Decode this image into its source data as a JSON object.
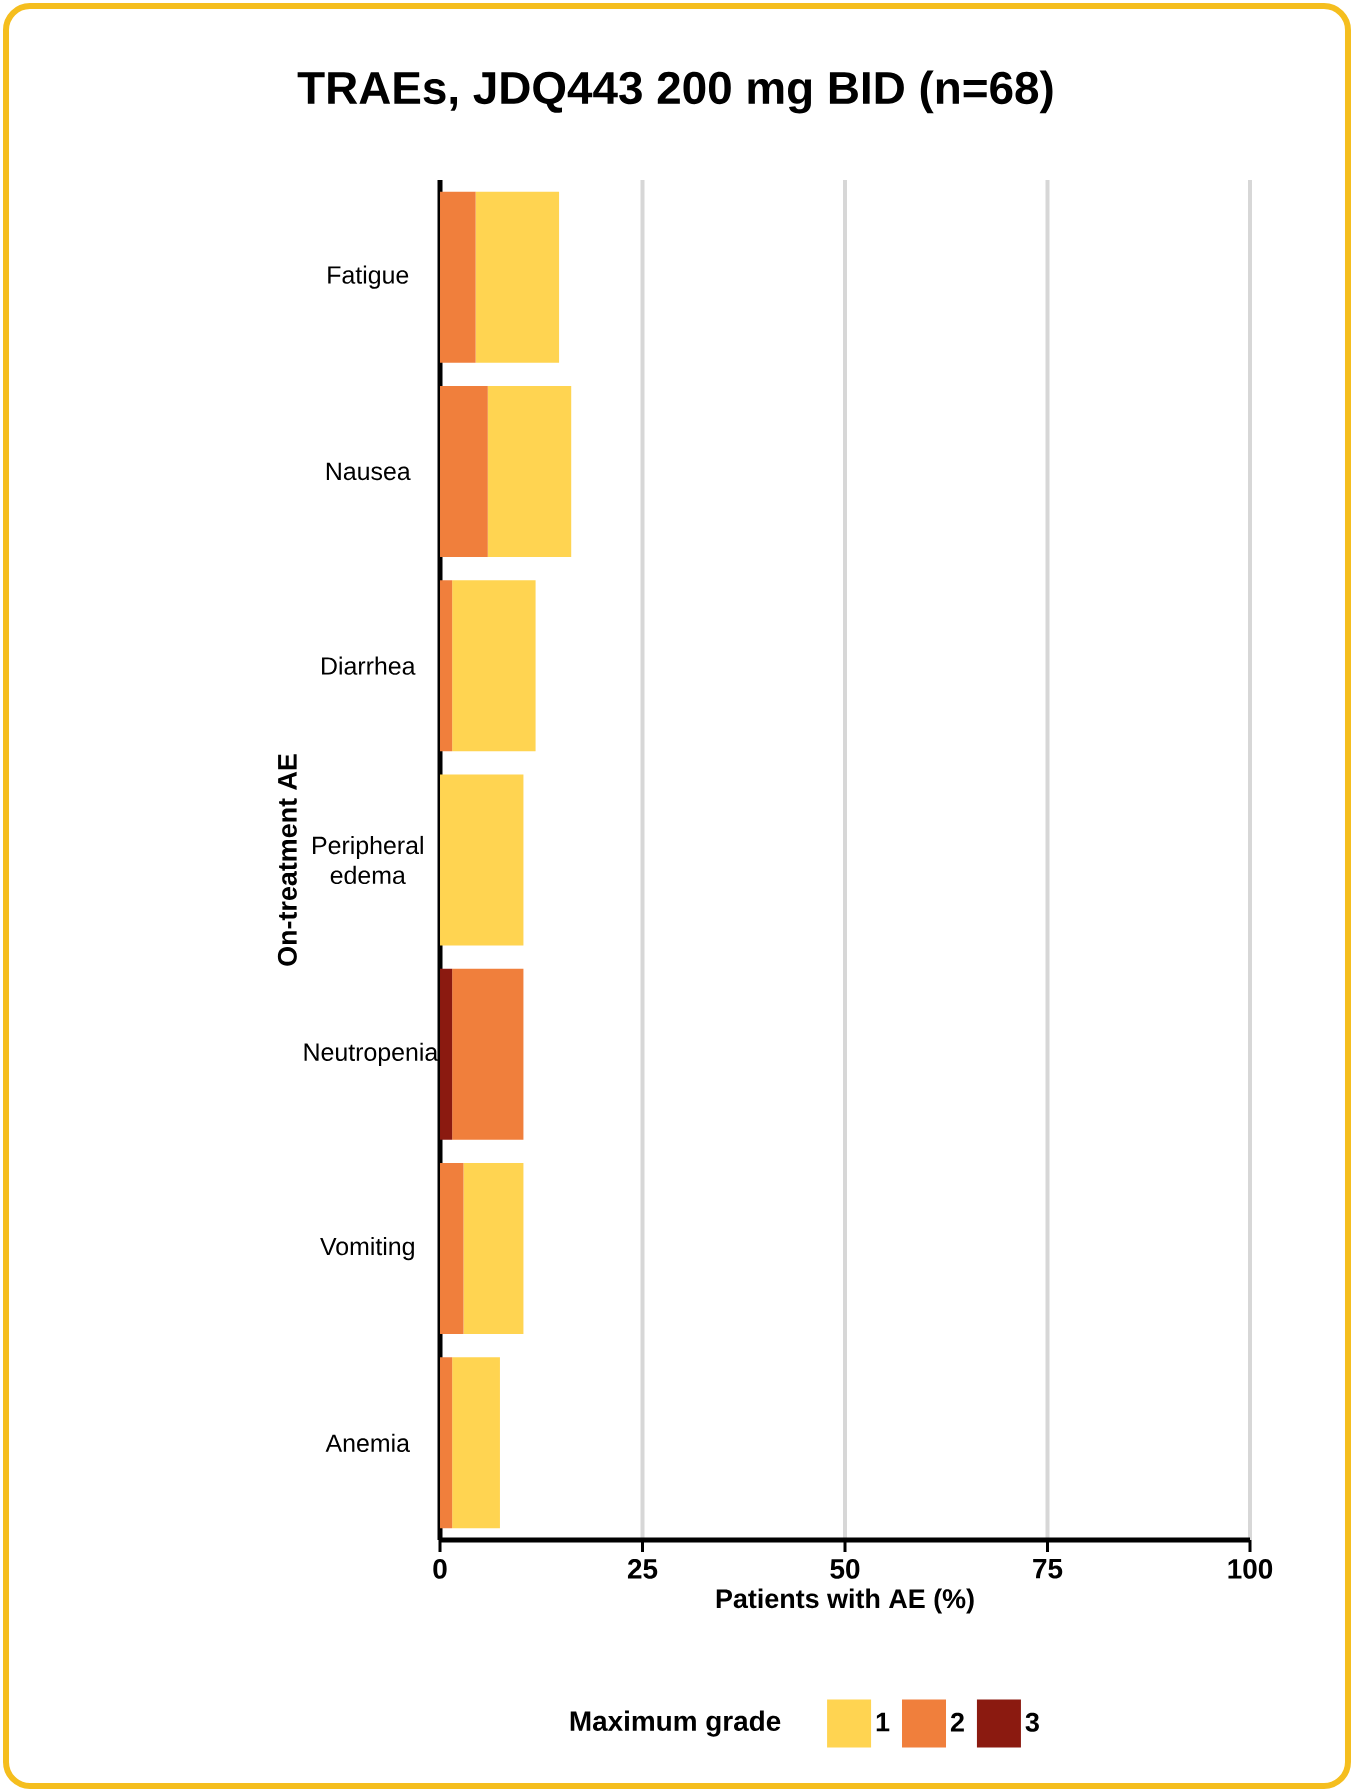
{
  "chart_data": {
    "type": "bar",
    "orientation": "horizontal",
    "stacked": true,
    "title": "TRAEs, JDQ443 200 mg BID (n=68)",
    "xlabel": "Patients with AE (%)",
    "ylabel": "On-treatment AE",
    "legend_title": "Maximum grade",
    "legend": "bottom",
    "grid": "x",
    "categories": [
      "Fatigue",
      "Nausea",
      "Diarrhea",
      "Peripheral edema",
      "Neutropenia",
      "Vomiting",
      "Anemia"
    ],
    "xlim": [
      0,
      100
    ],
    "xticks": [
      0,
      25,
      50,
      75,
      100
    ],
    "series": [
      {
        "name": "3",
        "color": "#8b1a10",
        "values": [
          0,
          0,
          0,
          0,
          1.5,
          0,
          0
        ]
      },
      {
        "name": "2",
        "color": "#f07f3c",
        "values": [
          4.4,
          5.9,
          1.5,
          0,
          8.8,
          2.9,
          1.5
        ]
      },
      {
        "name": "1",
        "color": "#ffd451",
        "values": [
          10.3,
          10.3,
          10.3,
          10.3,
          0,
          7.4,
          5.9
        ]
      }
    ]
  }
}
